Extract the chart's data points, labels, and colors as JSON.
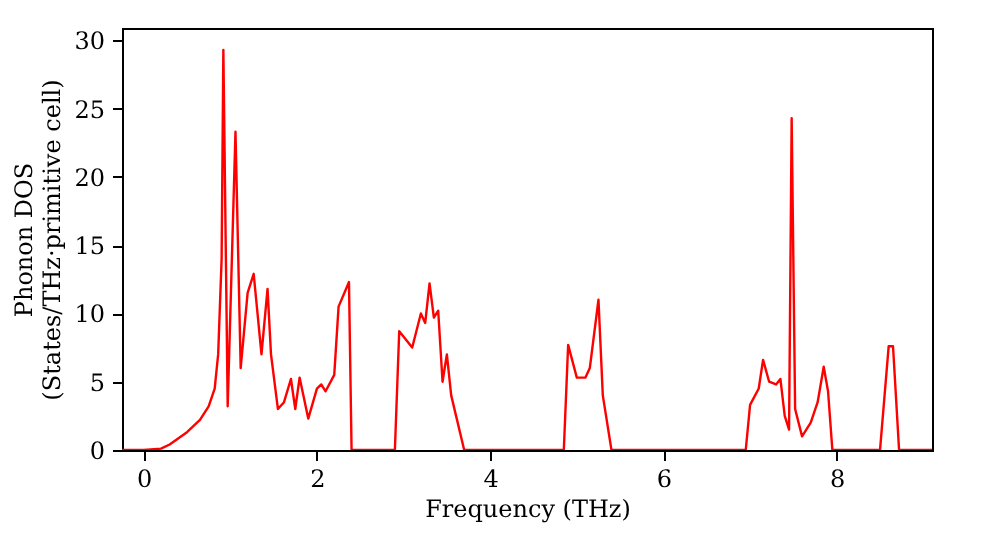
{
  "chart_data": {
    "type": "line",
    "xlabel": "Frequency (THz)",
    "ylabel": "Phonon DOS\n(States/THz·primitive cell)",
    "x": [
      -0.25,
      0,
      0.2,
      0.3,
      0.5,
      0.65,
      0.75,
      0.82,
      0.86,
      0.9,
      0.92,
      0.97,
      1.06,
      1.12,
      1.2,
      1.27,
      1.36,
      1.43,
      1.47,
      1.55,
      1.62,
      1.7,
      1.75,
      1.8,
      1.9,
      2.0,
      2.05,
      2.1,
      2.2,
      2.25,
      2.37,
      2.4,
      2.9,
      2.95,
      3.1,
      3.2,
      3.25,
      3.3,
      3.35,
      3.4,
      3.45,
      3.5,
      3.55,
      3.7,
      4.85,
      4.9,
      5.0,
      5.1,
      5.15,
      5.25,
      5.3,
      5.4,
      6.95,
      7.0,
      7.1,
      7.15,
      7.22,
      7.3,
      7.35,
      7.4,
      7.45,
      7.48,
      7.52,
      7.6,
      7.7,
      7.78,
      7.85,
      7.9,
      7.95,
      8.5,
      8.6,
      8.65,
      8.72,
      9.1
    ],
    "series": [
      {
        "color": "#ff0000",
        "values": [
          0,
          0,
          0.1,
          0.4,
          1.3,
          2.2,
          3.2,
          4.5,
          7,
          14,
          29.3,
          3.2,
          23.3,
          6,
          11.5,
          12.9,
          7,
          11.8,
          7,
          3,
          3.5,
          5.2,
          3,
          5.3,
          2.3,
          4.5,
          4.8,
          4.3,
          5.5,
          10.5,
          12.3,
          0,
          0,
          8.7,
          7.5,
          10,
          9.3,
          12.2,
          9.7,
          10.2,
          5,
          7,
          4,
          0,
          0,
          7.7,
          5.3,
          5.3,
          6,
          11,
          4,
          0,
          0,
          3.3,
          4.5,
          6.6,
          5,
          4.8,
          5.2,
          2.5,
          1.5,
          24.3,
          3,
          1,
          2,
          3.5,
          6.1,
          4.3,
          0,
          0,
          7.6,
          7.6,
          0,
          0
        ]
      }
    ],
    "xlim": [
      -0.25,
      9.1
    ],
    "xticks": [
      0,
      2,
      4,
      6,
      8
    ],
    "ylim": [
      0,
      30.9
    ],
    "yticks": [
      0,
      5,
      10,
      15,
      20,
      25,
      30
    ],
    "grid": false,
    "line_style": "solid"
  }
}
